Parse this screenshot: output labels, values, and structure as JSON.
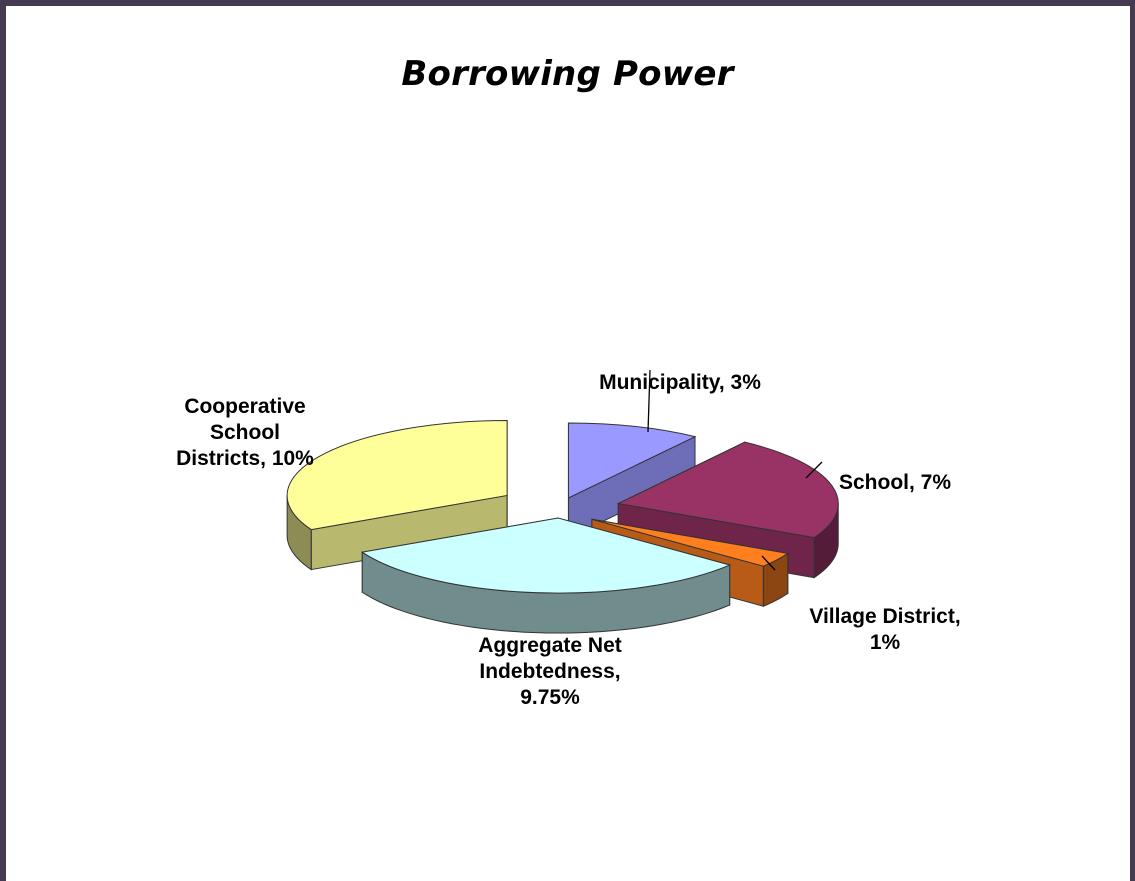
{
  "chart_data": {
    "type": "pie",
    "title": "Borrowing Power",
    "three_d": true,
    "exploded": true,
    "slices": [
      {
        "name": "Municipality",
        "value": 3,
        "label": "Municipality, 3%",
        "color": "#9999ff",
        "lines": [
          "Municipality, 3%"
        ]
      },
      {
        "name": "School",
        "value": 7,
        "label": "School, 7%",
        "color": "#993366",
        "lines": [
          "School, 7%"
        ]
      },
      {
        "name": "Village District",
        "value": 1,
        "label": "Village District, 1%",
        "color": "#ff7f1e",
        "lines": [
          "Village District,",
          "1%"
        ]
      },
      {
        "name": "Aggregate Net Indebtedness",
        "value": 9.75,
        "label": "Aggregate Net Indebtedness, 9.75%",
        "color": "#ccffff",
        "lines": [
          "Aggregate Net",
          "Indebtedness,",
          "9.75%"
        ]
      },
      {
        "name": "Cooperative School Districts",
        "value": 10,
        "label": "Cooperative School Districts, 10%",
        "color": "#ffff99",
        "lines": [
          "Cooperative",
          "School",
          "Districts, 10%"
        ]
      }
    ]
  }
}
